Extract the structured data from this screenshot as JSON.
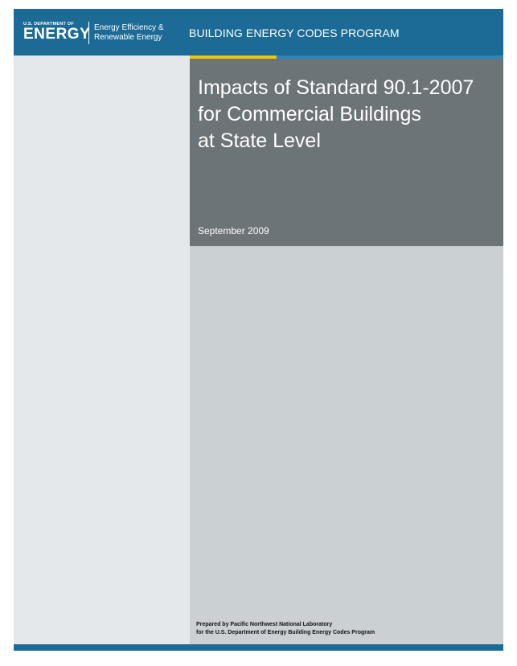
{
  "colors": {
    "header_blue": "#1c6b96",
    "accent_yellow": "#f2c500",
    "accent_blue": "#2a86bd",
    "title_gray": "#6c7478",
    "body_gray": "#cbd0d3",
    "left_panel": "#e4e8eb"
  },
  "header": {
    "logo_dept": "U.S. DEPARTMENT OF",
    "logo_energy": "ENERGY",
    "office_line1": "Energy Efficiency &",
    "office_line2": "Renewable Energy",
    "program": "BUILDING ENERGY CODES PROGRAM"
  },
  "cover": {
    "title_line1": "Impacts of Standard 90.1-2007",
    "title_line2": "for Commercial Buildings",
    "title_line3": "at State Level",
    "date": "September 2009"
  },
  "footer": {
    "prepared_line1": "Prepared by Pacific Northwest National Laboratory",
    "prepared_line2": "for the U.S. Department of Energy Building Energy Codes Program"
  }
}
